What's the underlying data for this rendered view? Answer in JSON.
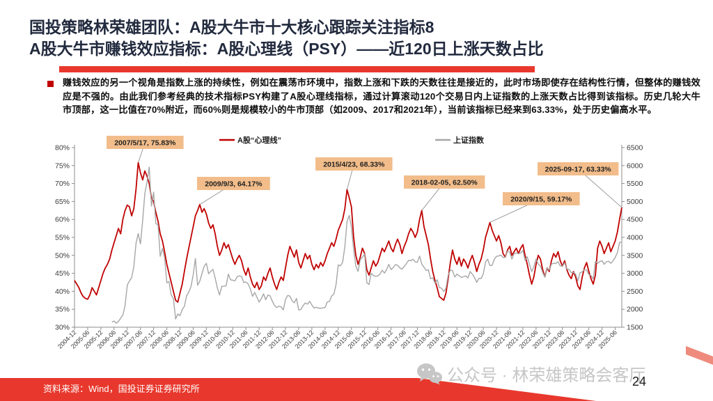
{
  "slide": {
    "title_line1": "国投策略林荣雄团队：A股大牛市十大核心跟踪关注指标8",
    "title_line2": "A股大牛市赚钱效应指标：A股心理线（PSY）——近120日上涨天数占比",
    "bullet_text": "赚钱效应的另一个视角是指数上涨的持续性，例如在震荡市环境中，指数上涨和下跌的天数往往是接近的，此时市场即使存在结构性行情，但整体的赚钱效应是不强的。由此我们参考经典的技术指标PSY构建了A股心理线指标，通过计算滚动120个交易日内上证指数的上涨天数占比得到该指标。历史几轮大牛市顶部，这一比值在70%附近，而60%则是规模较小的牛市顶部（如2009、2017和2021年），当前该指标已经来到63.33%，处于历史偏高水平。",
    "source_text": "资料来源：Wind，国投证券证券研究所",
    "watermark_text": "公众号 · 林荣雄策略会客厅",
    "page_number": "24",
    "colors": {
      "accent_red": "#E8382D",
      "title_navy": "#222A3E",
      "psy_line": "#C00000",
      "sse_line": "#A6A6A6",
      "annotation_bg": "#F2BD8B",
      "watermark_gray": "#C6C6C6"
    }
  },
  "chart_data": {
    "type": "line",
    "x_monthly_start": "2004-12",
    "x_tick_labels": [
      "2004-12",
      "2005-06",
      "2005-12",
      "2006-06",
      "2006-12",
      "2007-06",
      "2007-12",
      "2008-06",
      "2008-12",
      "2009-06",
      "2009-12",
      "2010-06",
      "2010-12",
      "2011-06",
      "2011-12",
      "2012-06",
      "2012-12",
      "2013-06",
      "2013-12",
      "2014-06",
      "2014-12",
      "2015-06",
      "2015-12",
      "2016-06",
      "2016-12",
      "2017-06",
      "2017-12",
      "2018-06",
      "2018-12",
      "2019-06",
      "2019-12",
      "2020-06",
      "2020-12",
      "2021-06",
      "2021-12",
      "2022-06",
      "2022-12",
      "2023-06",
      "2023-12",
      "2024-06",
      "2024-12",
      "2025-06"
    ],
    "left_axis": {
      "min": 30,
      "max": 80,
      "tick_step": 5,
      "tick_labels": [
        "80%",
        "75%",
        "70%",
        "65%",
        "60%",
        "55%",
        "50%",
        "45%",
        "40%",
        "35%",
        "30%"
      ]
    },
    "right_axis": {
      "min": 1500,
      "max": 6500,
      "tick_step": 500,
      "tick_labels": [
        "6500",
        "6000",
        "5500",
        "5000",
        "4500",
        "4000",
        "3500",
        "3000",
        "2500",
        "2000",
        "1500"
      ]
    },
    "legend_position": "top",
    "grid": false,
    "series": [
      {
        "name": "A股“心理线”",
        "axis": "left",
        "color": "#C00000",
        "values": [
          43.0,
          42.0,
          41.0,
          39.5,
          38.5,
          38.0,
          37.8,
          39.0,
          41.0,
          40.0,
          39.0,
          41.0,
          43.0,
          45.0,
          46.5,
          47.5,
          49.0,
          51.5,
          53.5,
          55.5,
          57.5,
          56.0,
          60.0,
          62.5,
          64.0,
          63.5,
          61.0,
          63.0,
          68.5,
          75.83,
          73.0,
          71.0,
          73.5,
          72.0,
          70.0,
          66.0,
          65.0,
          62.0,
          59.5,
          56.0,
          54.0,
          51.0,
          47.5,
          45.0,
          42.5,
          40.0,
          37.5,
          37.0,
          39.5,
          42.0,
          45.5,
          49.0,
          52.0,
          55.0,
          58.0,
          61.0,
          62.5,
          64.17,
          62.0,
          63.0,
          61.5,
          59.0,
          57.5,
          58.5,
          56.0,
          52.5,
          50.0,
          51.5,
          53.5,
          52.0,
          53.0,
          51.0,
          49.0,
          47.5,
          49.0,
          50.0,
          48.5,
          46.0,
          44.5,
          46.5,
          44.0,
          42.0,
          41.0,
          42.5,
          40.5,
          41.5,
          44.0,
          43.0,
          45.0,
          46.5,
          44.0,
          42.0,
          40.5,
          42.5,
          44.0,
          43.0,
          46.5,
          50.0,
          52.5,
          51.0,
          49.5,
          51.5,
          48.0,
          46.5,
          48.5,
          50.5,
          49.0,
          50.0,
          47.5,
          46.0,
          47.5,
          46.5,
          48.0,
          47.0,
          48.5,
          50.5,
          52.0,
          53.5,
          52.5,
          54.5,
          57.0,
          58.5,
          60.0,
          63.0,
          68.33,
          66.0,
          63.5,
          55.0,
          50.0,
          47.5,
          49.5,
          52.0,
          50.5,
          46.0,
          44.5,
          46.5,
          48.5,
          47.0,
          48.0,
          50.0,
          52.0,
          51.0,
          52.5,
          54.0,
          52.0,
          51.0,
          53.0,
          54.5,
          53.0,
          50.5,
          52.5,
          54.0,
          56.0,
          57.5,
          56.5,
          55.0,
          56.5,
          60.0,
          62.5,
          58.0,
          55.5,
          53.0,
          49.0,
          45.5,
          43.0,
          41.0,
          38.5,
          38.0,
          37.5,
          39.5,
          43.5,
          48.0,
          51.5,
          49.0,
          47.5,
          49.5,
          47.0,
          49.0,
          48.0,
          46.5,
          48.5,
          50.0,
          48.0,
          45.5,
          47.5,
          49.0,
          51.5,
          55.0,
          57.0,
          59.17,
          57.0,
          55.5,
          54.0,
          55.5,
          53.5,
          50.5,
          49.5,
          51.5,
          52.5,
          50.0,
          51.0,
          52.0,
          50.5,
          52.0,
          53.0,
          50.0,
          47.5,
          44.5,
          42.0,
          44.0,
          47.5,
          50.0,
          49.0,
          46.0,
          44.0,
          46.5,
          45.5,
          48.5,
          50.5,
          49.5,
          51.0,
          48.5,
          47.0,
          48.5,
          46.0,
          44.5,
          43.5,
          45.5,
          44.0,
          41.5,
          40.5,
          44.0,
          46.5,
          48.0,
          45.5,
          43.5,
          42.0,
          44.5,
          52.0,
          54.0,
          52.5,
          50.5,
          52.0,
          53.5,
          51.0,
          52.5,
          54.0,
          56.5,
          60.0,
          63.33
        ]
      },
      {
        "name": "上证指数",
        "axis": "right",
        "color": "#A6A6A6",
        "values": [
          null,
          null,
          null,
          null,
          null,
          null,
          null,
          null,
          null,
          null,
          null,
          null,
          null,
          null,
          null,
          null,
          null,
          1640,
          1672,
          1613,
          1658,
          1752,
          1838,
          2099,
          2675,
          2786,
          2881,
          3183,
          3841,
          4109,
          3820,
          4471,
          5218,
          5552,
          5955,
          4872,
          5262,
          4383,
          4348,
          3473,
          3693,
          3433,
          2736,
          2776,
          2397,
          2294,
          1729,
          1871,
          1821,
          1991,
          2082,
          2373,
          2478,
          2632,
          2959,
          3412,
          2668,
          2779,
          2995,
          3195,
          3277,
          2989,
          3052,
          3109,
          2871,
          2592,
          2398,
          2638,
          2639,
          2656,
          2979,
          2820,
          2808,
          2790,
          2905,
          2928,
          2911,
          2743,
          2762,
          2701,
          2567,
          2359,
          2468,
          2333,
          2199,
          2293,
          2428,
          2263,
          2396,
          2372,
          2225,
          2103,
          2048,
          2086,
          2068,
          1980,
          2269,
          2385,
          2366,
          2237,
          2178,
          2301,
          1979,
          1994,
          2098,
          2175,
          2141,
          2220,
          2116,
          2033,
          2056,
          2033,
          2026,
          2039,
          2048,
          2202,
          2217,
          2364,
          2420,
          2683,
          3235,
          3210,
          3310,
          3748,
          4442,
          4612,
          4277,
          3664,
          3206,
          3053,
          3383,
          3445,
          3539,
          2738,
          2688,
          3004,
          2938,
          2917,
          2930,
          2979,
          3085,
          3005,
          3100,
          3250,
          3104,
          3159,
          3242,
          3223,
          3155,
          3117,
          3192,
          3273,
          3361,
          3349,
          3393,
          3317,
          3307,
          3481,
          3259,
          3169,
          3082,
          3095,
          2847,
          2876,
          2725,
          2821,
          2603,
          2588,
          2494,
          2585,
          2941,
          3091,
          3078,
          2899,
          2979,
          2933,
          2886,
          2905,
          2929,
          2872,
          3050,
          2977,
          2880,
          2750,
          2860,
          2852,
          2985,
          3310,
          3396,
          3218,
          3225,
          3392,
          3473,
          3483,
          3509,
          3442,
          3447,
          3615,
          3591,
          3397,
          3544,
          3568,
          3547,
          3564,
          3640,
          3361,
          3462,
          3252,
          3047,
          3186,
          3399,
          3253,
          3202,
          3024,
          2893,
          3151,
          3089,
          3256,
          3280,
          3273,
          3323,
          3205,
          3202,
          3291,
          3120,
          3110,
          3019,
          3030,
          2975,
          2789,
          3015,
          3041,
          3105,
          3087,
          2967,
          2938,
          2842,
          3336,
          3280,
          3326,
          3352,
          3251,
          3321,
          3336,
          3279,
          3347,
          3444,
          3573,
          3858,
          3870
        ]
      }
    ],
    "annotations": [
      {
        "label": "2007/5/17, 75.83%",
        "month": "2007-05",
        "value": 75.83
      },
      {
        "label": "2009/9/3, 64.17%",
        "month": "2009-09",
        "value": 64.17
      },
      {
        "label": "2015/4/23, 68.33%",
        "month": "2015-04",
        "value": 68.33
      },
      {
        "label": "2018-02-05, 62.50%",
        "month": "2018-02",
        "value": 62.5
      },
      {
        "label": "2020/9/15, 59.17%",
        "month": "2020-09",
        "value": 59.17
      },
      {
        "label": "2025-09-17, 63.33%",
        "month": "2025-09",
        "value": 63.33
      }
    ]
  }
}
